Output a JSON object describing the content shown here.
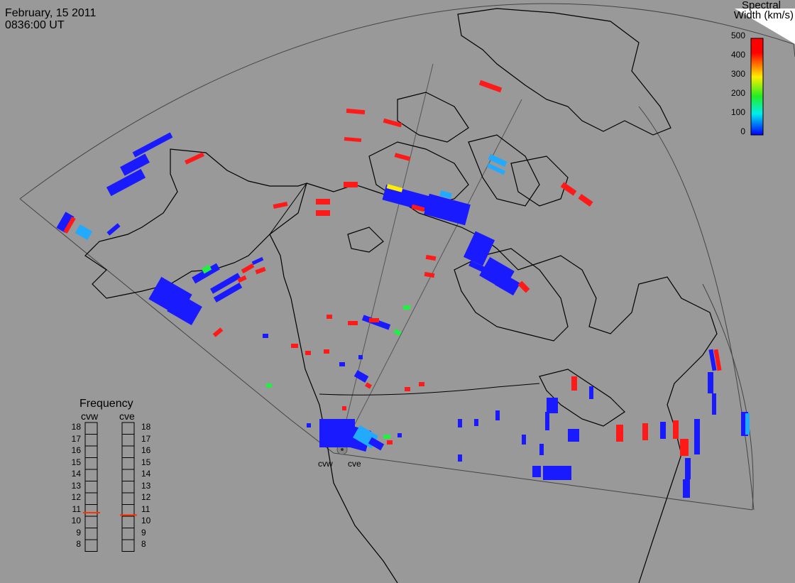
{
  "header": {
    "date": "February, 15 2011",
    "time": "0836:00 UT"
  },
  "colorbar": {
    "title_line1": "Spectral",
    "title_line2": "Width (km/s)",
    "ticks": [
      "500",
      "400",
      "300",
      "200",
      "100",
      "0"
    ],
    "colors": [
      "#ff0000",
      "#ff8800",
      "#ffee00",
      "#22ee22",
      "#00eeee",
      "#0000ff"
    ]
  },
  "frequency": {
    "title": "Frequency",
    "radars": [
      {
        "code": "cvw",
        "value_mhz": 10.8
      },
      {
        "code": "cve",
        "value_mhz": 10.6
      }
    ],
    "scale": [
      "18",
      "17",
      "16",
      "15",
      "14",
      "13",
      "12",
      "11",
      "10",
      "9",
      "8"
    ]
  },
  "sites": [
    {
      "code": "cvw"
    },
    {
      "code": "cve"
    }
  ],
  "colors": {
    "background": "#999999",
    "outline": "#000000",
    "fov_line": "#444444",
    "indicator": "#ff3300"
  }
}
